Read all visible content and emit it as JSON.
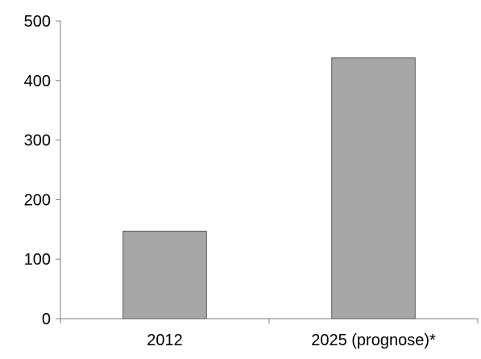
{
  "chart_data": {
    "type": "bar",
    "title": "",
    "xlabel": "",
    "ylabel": "",
    "categories": [
      "2012",
      "2025 (prognose)*"
    ],
    "values": [
      147,
      438
    ],
    "ylim": [
      0,
      500
    ],
    "yticks": [
      0,
      100,
      200,
      300,
      400,
      500
    ],
    "grid": false,
    "legend": "none",
    "bar_color": "#a6a6a6",
    "bar_edge_color": "#595959",
    "axis_color": "#7f7f7f"
  }
}
